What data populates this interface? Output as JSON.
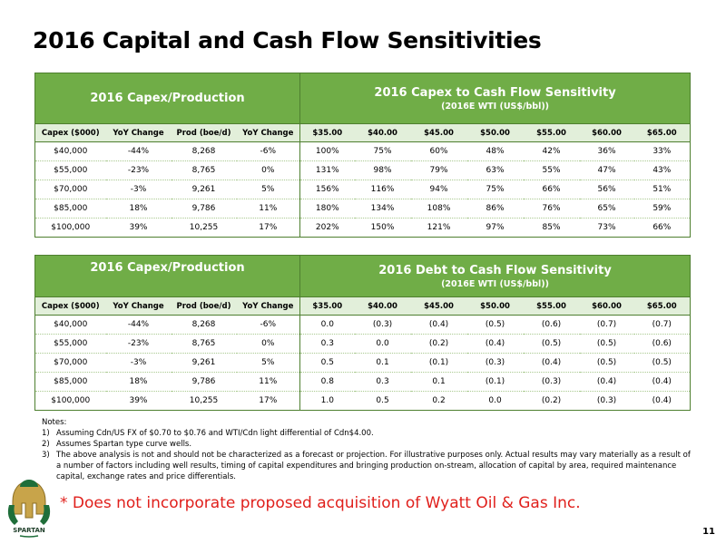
{
  "title": "2016 Capital and Cash Flow Sensitivities",
  "colors": {
    "header_green": "#70ad47",
    "subheader_green": "#e2efda",
    "border_green": "#4e7f2f",
    "disclaimer_red": "#e0201c"
  },
  "table1": {
    "left_header": "2016 Capex/Production",
    "right_header": "2016 Capex to Cash Flow Sensitivity",
    "right_subheader": "(2016E WTI (US$/bbl))",
    "columns": [
      "Capex ($000)",
      "YoY Change",
      "Prod (boe/d)",
      "YoY Change",
      "$35.00",
      "$40.00",
      "$45.00",
      "$50.00",
      "$55.00",
      "$60.00",
      "$65.00"
    ],
    "rows": [
      [
        "$40,000",
        "-44%",
        "8,268",
        "-6%",
        "100%",
        "75%",
        "60%",
        "48%",
        "42%",
        "36%",
        "33%"
      ],
      [
        "$55,000",
        "-23%",
        "8,765",
        "0%",
        "131%",
        "98%",
        "79%",
        "63%",
        "55%",
        "47%",
        "43%"
      ],
      [
        "$70,000",
        "-3%",
        "9,261",
        "5%",
        "156%",
        "116%",
        "94%",
        "75%",
        "66%",
        "56%",
        "51%"
      ],
      [
        "$85,000",
        "18%",
        "9,786",
        "11%",
        "180%",
        "134%",
        "108%",
        "86%",
        "76%",
        "65%",
        "59%"
      ],
      [
        "$100,000",
        "39%",
        "10,255",
        "17%",
        "202%",
        "150%",
        "121%",
        "97%",
        "85%",
        "73%",
        "66%"
      ]
    ]
  },
  "table2": {
    "left_header": "2016 Capex/Production",
    "right_header": "2016 Debt to Cash Flow Sensitivity",
    "right_subheader": "(2016E WTI (US$/bbl))",
    "columns": [
      "Capex ($000)",
      "YoY Change",
      "Prod (boe/d)",
      "YoY Change",
      "$35.00",
      "$40.00",
      "$45.00",
      "$50.00",
      "$55.00",
      "$60.00",
      "$65.00"
    ],
    "rows": [
      [
        "$40,000",
        "-44%",
        "8,268",
        "-6%",
        "0.0",
        "(0.3)",
        "(0.4)",
        "(0.5)",
        "(0.6)",
        "(0.7)",
        "(0.7)"
      ],
      [
        "$55,000",
        "-23%",
        "8,765",
        "0%",
        "0.3",
        "0.0",
        "(0.2)",
        "(0.4)",
        "(0.5)",
        "(0.5)",
        "(0.6)"
      ],
      [
        "$70,000",
        "-3%",
        "9,261",
        "5%",
        "0.5",
        "0.1",
        "(0.1)",
        "(0.3)",
        "(0.4)",
        "(0.5)",
        "(0.5)"
      ],
      [
        "$85,000",
        "18%",
        "9,786",
        "11%",
        "0.8",
        "0.3",
        "0.1",
        "(0.1)",
        "(0.3)",
        "(0.4)",
        "(0.4)"
      ],
      [
        "$100,000",
        "39%",
        "10,255",
        "17%",
        "1.0",
        "0.5",
        "0.2",
        "0.0",
        "(0.2)",
        "(0.3)",
        "(0.4)"
      ]
    ]
  },
  "notes": {
    "heading": "Notes:",
    "items": [
      {
        "num": "1)",
        "text": "Assuming Cdn/US FX of $0.70 to $0.76 and WTI/Cdn light differential of Cdn$4.00."
      },
      {
        "num": "2)",
        "text": "Assumes Spartan type curve wells."
      },
      {
        "num": "3)",
        "text": "The above analysis is not and should not be characterized as a forecast or projection.  For illustrative purposes only.  Actual results may vary materially as a result of a number of factors including well results, timing of capital expenditures and bringing production on-stream, allocation of capital by area, required maintenance capital, exchange rates and price differentials."
      }
    ]
  },
  "disclaimer": "* Does not incorporate proposed acquisition of Wyatt Oil & Gas Inc.",
  "logo": {
    "icon": "spartan-helmet-icon",
    "text": "SPARTAN"
  },
  "page_number": "11"
}
